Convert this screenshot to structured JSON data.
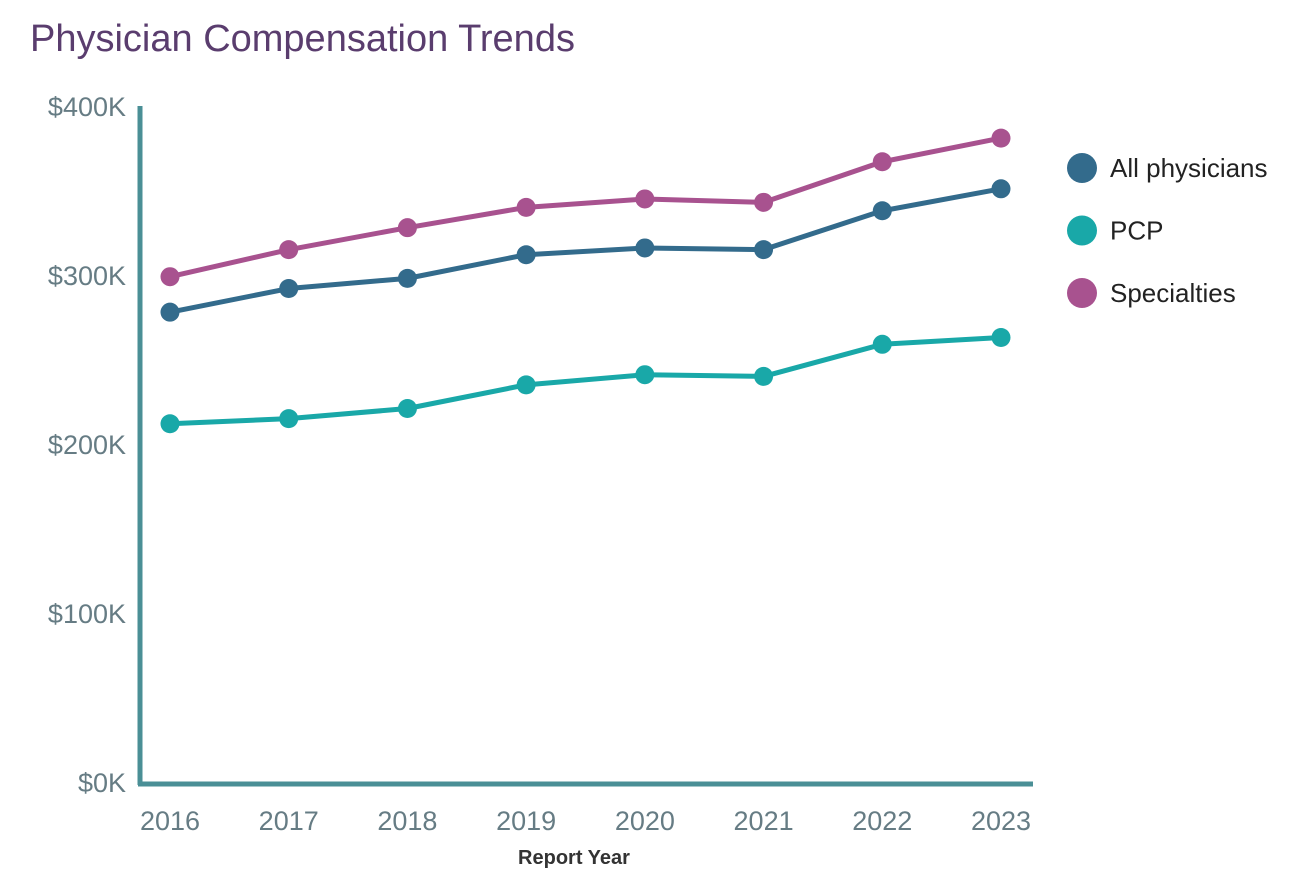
{
  "chart_data": {
    "type": "line",
    "title": "Physician Compensation Trends",
    "xlabel": "Report Year",
    "ylabel": "",
    "x": [
      "2016",
      "2017",
      "2018",
      "2019",
      "2020",
      "2021",
      "2022",
      "2023"
    ],
    "ylim": [
      0,
      400
    ],
    "yticks": [
      "$0K",
      "$100K",
      "$200K",
      "$300K",
      "$400K"
    ],
    "grid": false,
    "legend": "right",
    "axis_color": "#4a8f96",
    "series": [
      {
        "name": "All physicians",
        "color": "#336b8c",
        "values": [
          278,
          292,
          298,
          312,
          316,
          315,
          338,
          351
        ]
      },
      {
        "name": "PCP",
        "color": "#19a8a8",
        "values": [
          212,
          215,
          221,
          235,
          241,
          240,
          259,
          263
        ]
      },
      {
        "name": "Specialties",
        "color": "#a8528f",
        "values": [
          299,
          315,
          328,
          340,
          345,
          343,
          367,
          381
        ]
      }
    ]
  }
}
